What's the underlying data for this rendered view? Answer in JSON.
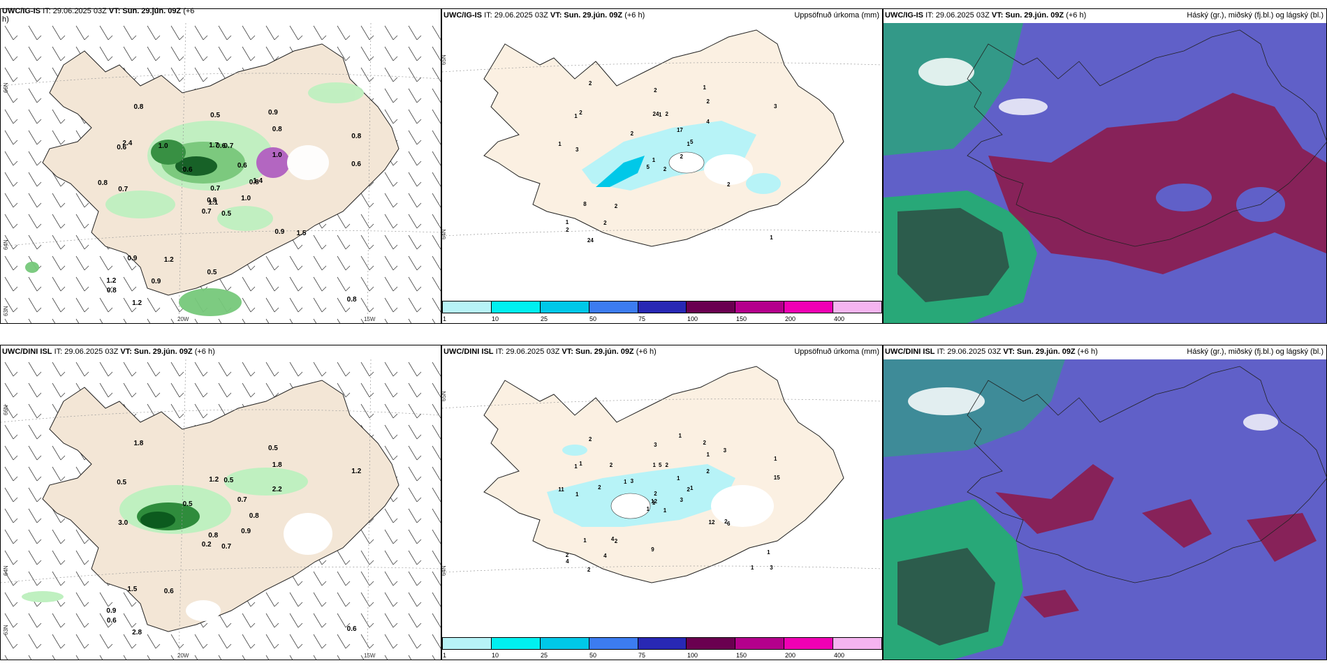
{
  "panels": {
    "top_left": {
      "model": "UWC/IG-IS",
      "it": "IT: 29.06.2025 03Z",
      "vt": "VT: Sun. 29.jún. 09Z",
      "lead": "(+6",
      "lead2": "h)",
      "lat_labels": [
        "66N",
        "64N",
        "63N"
      ],
      "lon_labels": [
        "20W",
        "15W"
      ],
      "values": [
        "0.5",
        "0.6",
        "1.1",
        "1.2",
        "0.8",
        "1.2",
        "0.9",
        "0.7",
        "0.8",
        "1.0",
        "0.8",
        "0.8",
        "0.7",
        "0.8",
        "0.7",
        "1.0",
        "1.2",
        "1.7",
        "0.6",
        "0.9",
        "0.6",
        "0.8",
        "0.9",
        "0.6",
        "1.4",
        "1.5",
        "2.4",
        "0.5",
        "0.8",
        "0.9",
        "0.6",
        "0.8",
        "0.5",
        "0.7",
        "1.0"
      ]
    },
    "top_middle": {
      "model": "UWC/IG-IS",
      "it": "IT: 29.06.2025 03Z",
      "vt": "VT: Sun. 29.jún. 09Z",
      "lead": "(+6 h)",
      "right_title": "Uppsöfnuð úrkoma (mm)",
      "lat_labels": [
        "65N",
        "64N"
      ],
      "values": [
        "2",
        "1",
        "1",
        "1",
        "1",
        "2",
        "1",
        "2",
        "2",
        "2",
        "2",
        "1",
        "3",
        "3",
        "5",
        "4",
        "24",
        "24",
        "17",
        "8",
        "2",
        "2",
        "2",
        "1",
        "5",
        "2",
        "2",
        "2",
        "1"
      ]
    },
    "top_right": {
      "model": "UWC/IG-IS",
      "it": "IT: 29.06.2025 03Z",
      "vt": "VT: Sun. 29.jún. 09Z",
      "lead": "(+6 h)",
      "right_title": "Háský (gr.), miðský (fj.bl.) og lágský (bl.)"
    },
    "bottom_left": {
      "model": "UWC/DINI ISL",
      "it": "IT: 29.06.2025 03Z",
      "vt": "VT: Sun. 29.jún. 09Z",
      "lead": "(+6 h)",
      "lat_labels": [
        "66N",
        "64N",
        "63N"
      ],
      "lon_labels": [
        "20W",
        "15W"
      ],
      "values": [
        "0.7",
        "0.5",
        "0.8",
        "0.9",
        "0.8",
        "0.6",
        "0.5",
        "0.5",
        "1.8",
        "0.9",
        "1.8",
        "0.6",
        "3.0",
        "1.2",
        "0.2",
        "2.2",
        "2.8",
        "1.2",
        "0.7",
        "1.5",
        "0.5",
        "0.6"
      ]
    },
    "bottom_middle": {
      "model": "UWC/DINI ISL",
      "it": "IT: 29.06.2025 03Z",
      "vt": "VT: Sun. 29.jún. 09Z",
      "lead": "(+6 h)",
      "right_title": "Uppsöfnuð úrkoma (mm)",
      "lat_labels": [
        "65N",
        "64N"
      ],
      "values": [
        "1",
        "1",
        "1",
        "2",
        "2",
        "2",
        "2",
        "2",
        "1",
        "3",
        "2",
        "3",
        "1",
        "1",
        "1",
        "2",
        "2",
        "1",
        "1",
        "1",
        "3",
        "4",
        "4",
        "5",
        "1",
        "6",
        "1",
        "3",
        "11",
        "12",
        "15",
        "12",
        "9",
        "2",
        "2",
        "3",
        "4",
        "1",
        "1",
        "2",
        "1",
        "1",
        "2"
      ]
    },
    "bottom_right": {
      "model": "UWC/DINI ISL",
      "it": "IT: 29.06.2025 03Z",
      "vt": "VT: Sun. 29.jún. 09Z",
      "lead": "(+6 h)",
      "right_title": "Háský (gr.), miðský (fj.bl.) og lágský (bl.)"
    }
  },
  "colorbar": {
    "labels": [
      "1",
      "10",
      "25",
      "50",
      "75",
      "100",
      "150",
      "200",
      "400"
    ],
    "colors": [
      "#b7f3f7",
      "#00f0f0",
      "#00c8e8",
      "#3c7cf0",
      "#2828b4",
      "#6a0050",
      "#b4008c",
      "#f000b4",
      "#f5b4f0"
    ]
  },
  "colors": {
    "land": "#f3e6d6",
    "land_bright": "#fbf0e2",
    "precip_light": "#bff0c0",
    "precip_mid": "#76c87a",
    "precip_dark": "#2f8c3c",
    "precip_darkest": "#0c5a1e",
    "cloud_low": "#6060c8",
    "cloud_mid": "#8c1c4c",
    "cloud_high": "#28a878",
    "cloud_dark": "#2c5c4c"
  }
}
